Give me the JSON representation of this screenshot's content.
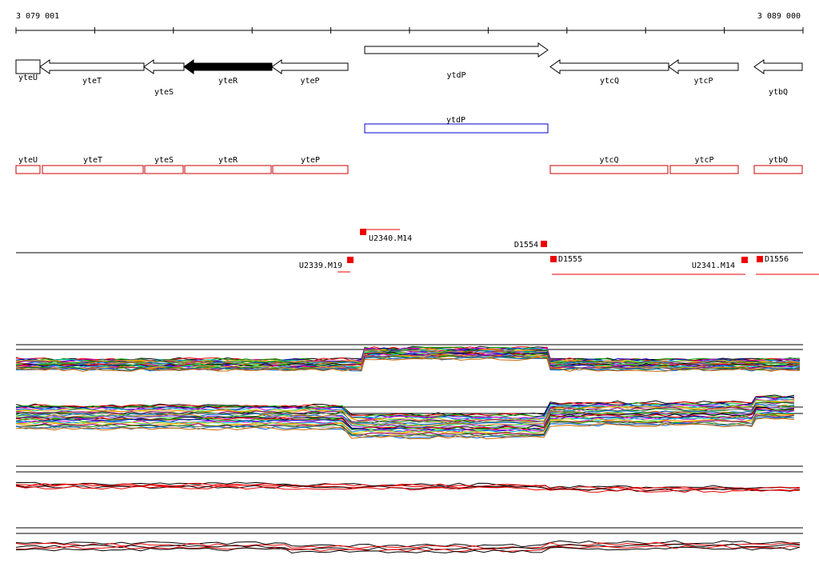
{
  "ruler": {
    "start": "3 079 001",
    "end": "3 089 000"
  },
  "genes": [
    {
      "label": "yteU"
    },
    {
      "label": "yteT"
    },
    {
      "label": "yteS"
    },
    {
      "label": "yteR"
    },
    {
      "label": "yteP"
    },
    {
      "label": "ytdP"
    },
    {
      "label": "ytcQ"
    },
    {
      "label": "ytcP"
    },
    {
      "label": "ytbQ"
    }
  ],
  "proteins": [
    {
      "label": "ytdP"
    }
  ],
  "transcripts": [
    {
      "label": "yteU"
    },
    {
      "label": "yteT"
    },
    {
      "label": "yteS"
    },
    {
      "label": "yteR"
    },
    {
      "label": "yteP"
    },
    {
      "label": "ytcQ"
    },
    {
      "label": "ytcP"
    },
    {
      "label": "ytbQ"
    }
  ],
  "sites": [
    {
      "label": "U2340.M14"
    },
    {
      "label": "D1554"
    },
    {
      "label": "U2339.M19"
    },
    {
      "label": "D1555"
    },
    {
      "label": "U2341.M14"
    },
    {
      "label": "D1556"
    }
  ]
}
